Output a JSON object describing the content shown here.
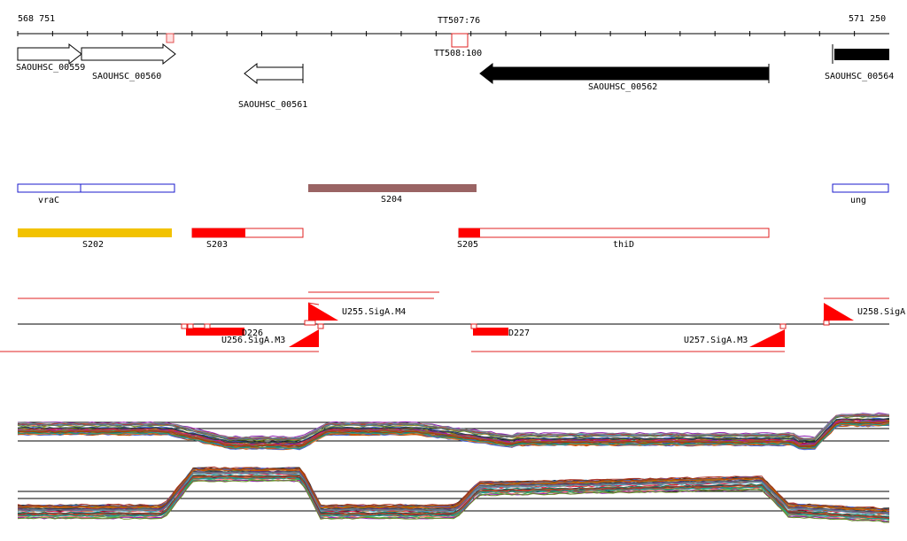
{
  "ruler": {
    "start_label": "568 751",
    "end_label": "571 250",
    "marker_top": "TT507:76",
    "marker_bottom": "TT508:100"
  },
  "genes": [
    {
      "id": "g559",
      "label": "SAOUHSC_00559",
      "strand": "+",
      "fill": "#ffffff"
    },
    {
      "id": "g560",
      "label": "SAOUHSC_00560",
      "strand": "+",
      "fill": "#ffffff"
    },
    {
      "id": "g561",
      "label": "SAOUHSC_00561",
      "strand": "-",
      "fill": "#ffffff"
    },
    {
      "id": "g562",
      "label": "SAOUHSC_00562",
      "strand": "-",
      "fill": "#000000"
    },
    {
      "id": "g564",
      "label": "SAOUHSC_00564",
      "strand": "+",
      "fill": "#000000"
    }
  ],
  "features": {
    "vraC": "vraC",
    "ung": "ung",
    "S204": "S204",
    "S202": "S202",
    "S203": "S203",
    "S205": "S205",
    "thiD": "thiD"
  },
  "promoters": {
    "U255": "U255.SigA.M4",
    "U258": "U258.SigA",
    "D226": "D226",
    "U256": "U256.SigA.M3",
    "D227": "D227",
    "U257": "U257.SigA.M3"
  },
  "colors": {
    "blue_outline": "#1a1acc",
    "brown": "#9a6464",
    "gold": "#f2c200",
    "red": "#ff0000",
    "axis": "#000000"
  },
  "tracks": {
    "upper_series_count": 40,
    "lower_series_count": 40
  }
}
